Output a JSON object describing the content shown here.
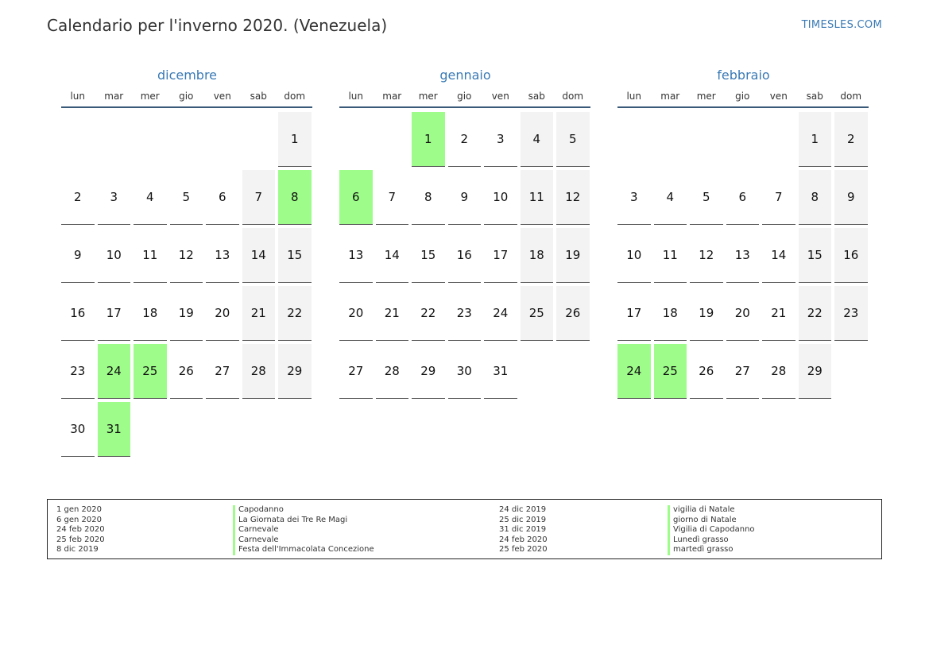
{
  "title": "Calendario per l'inverno 2020. (Venezuela)",
  "brand": "TIMESLES.COM",
  "weekday_labels": [
    "lun",
    "mar",
    "mer",
    "gio",
    "ven",
    "sab",
    "dom"
  ],
  "months": [
    {
      "name": "dicembre",
      "start_offset": 6,
      "days": 31,
      "holidays": [
        8,
        24,
        25,
        31
      ]
    },
    {
      "name": "gennaio",
      "start_offset": 2,
      "days": 31,
      "holidays": [
        1,
        6
      ]
    },
    {
      "name": "febbraio",
      "start_offset": 5,
      "days": 29,
      "holidays": [
        24,
        25
      ]
    }
  ],
  "colors": {
    "accent": "#3a7ab5",
    "holiday": "#9efd8a",
    "weekend": "#f3f3f3"
  },
  "legend_left": [
    {
      "date": "1 gen 2020",
      "name": "Capodanno"
    },
    {
      "date": "6 gen 2020",
      "name": "La Giornata dei Tre Re Magi"
    },
    {
      "date": "24 feb 2020",
      "name": "Carnevale"
    },
    {
      "date": "25 feb 2020",
      "name": "Carnevale"
    },
    {
      "date": "8 dic 2019",
      "name": "Festa dell'Immacolata Concezione"
    }
  ],
  "legend_right": [
    {
      "date": "24 dic 2019",
      "name": "vigilia di Natale"
    },
    {
      "date": "25 dic 2019",
      "name": "giorno di Natale"
    },
    {
      "date": "31 dic 2019",
      "name": "Vigilia di Capodanno"
    },
    {
      "date": "24 feb 2020",
      "name": "Lunedì grasso"
    },
    {
      "date": "25 feb 2020",
      "name": "martedì grasso"
    }
  ]
}
